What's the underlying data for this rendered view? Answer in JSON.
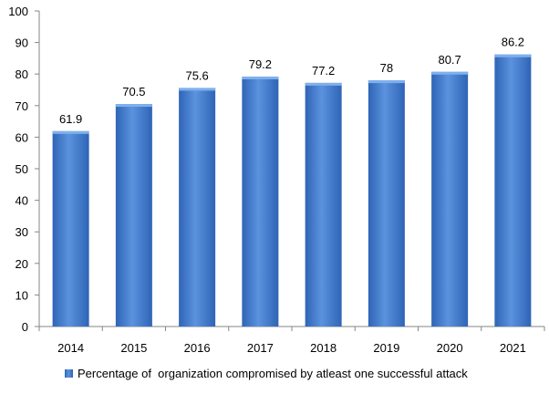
{
  "chart_data": {
    "type": "bar",
    "categories": [
      "2014",
      "2015",
      "2016",
      "2017",
      "2018",
      "2019",
      "2020",
      "2021"
    ],
    "series": [
      {
        "name": "Percentage of  organization compromised by atleast one successful attack",
        "values": [
          61.9,
          70.5,
          75.6,
          79.2,
          77.2,
          78,
          80.7,
          86.2
        ],
        "labels": [
          "61.9",
          "70.5",
          "75.6",
          "79.2",
          "77.2",
          "78",
          "80.7",
          "86.2"
        ]
      }
    ],
    "title": "",
    "xlabel": "",
    "ylabel": "",
    "ylim": [
      0,
      100
    ],
    "yticks": [
      "0",
      "10",
      "20",
      "30",
      "40",
      "50",
      "60",
      "70",
      "80",
      "90",
      "100"
    ],
    "grid": false,
    "legend": "bottom",
    "colors": {
      "bar_light": "#5b93de",
      "bar_dark": "#2f64b6",
      "bar_top": "#7fb0ee",
      "axis": "#868686"
    }
  }
}
